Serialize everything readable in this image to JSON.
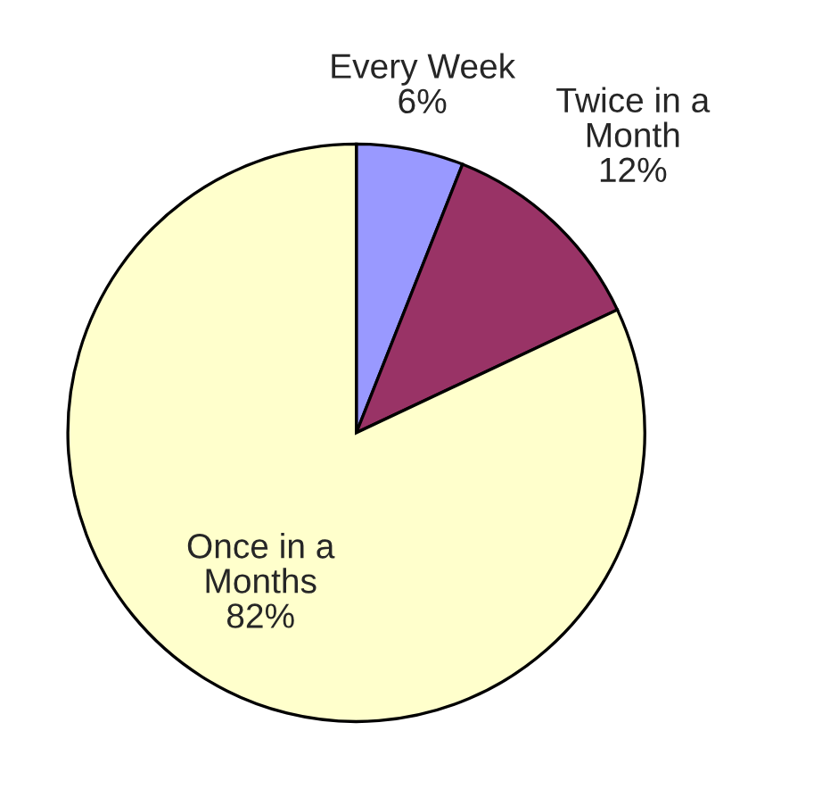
{
  "chart_data": {
    "type": "pie",
    "categories": [
      "Every Week",
      "Twice in a\nMonth",
      "Once in a\nMonths"
    ],
    "values": [
      6,
      12,
      82
    ],
    "colors": [
      "#9999ff",
      "#993366",
      "#ffffcc"
    ],
    "value_labels": [
      "6%",
      "12%",
      "82%"
    ]
  }
}
